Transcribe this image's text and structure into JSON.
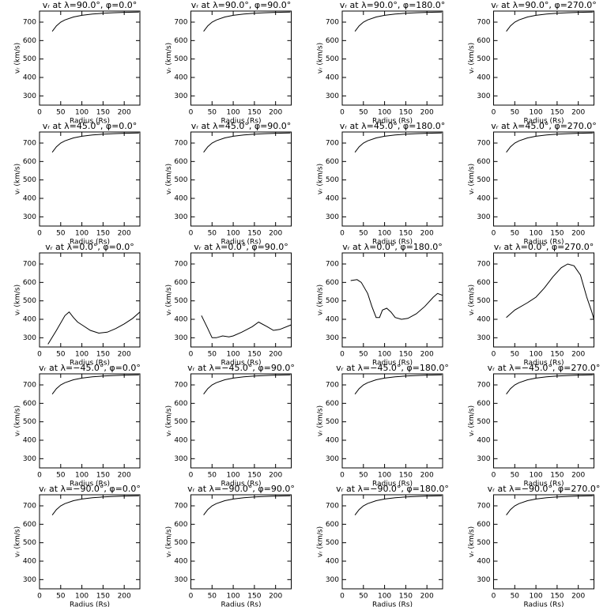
{
  "chart_data": [
    {
      "type": "line",
      "title": "vᵣ at λ=90.0°, φ=0.0°",
      "x": [
        30,
        40,
        50,
        60,
        80,
        100,
        125,
        150,
        175,
        200,
        235
      ],
      "values": [
        650,
        680,
        700,
        712,
        728,
        737,
        744,
        748,
        751,
        753,
        755
      ],
      "xlim": [
        0,
        237
      ],
      "ylim": [
        250,
        760
      ],
      "xticks": [
        0,
        50,
        100,
        150,
        200
      ],
      "yticks": [
        300,
        400,
        500,
        600,
        700
      ],
      "xlabel": "Radius (Rs)",
      "ylabel": "vᵣ (km/s)"
    },
    {
      "type": "line",
      "title": "vᵣ at λ=90.0°, φ=90.0°",
      "x": [
        30,
        40,
        50,
        60,
        80,
        100,
        125,
        150,
        175,
        200,
        235
      ],
      "values": [
        650,
        680,
        700,
        712,
        728,
        737,
        744,
        748,
        751,
        753,
        755
      ],
      "xlim": [
        0,
        237
      ],
      "ylim": [
        250,
        760
      ],
      "xticks": [
        0,
        50,
        100,
        150,
        200
      ],
      "yticks": [
        300,
        400,
        500,
        600,
        700
      ],
      "xlabel": "Radius (Rs)",
      "ylabel": "vᵣ (km/s)"
    },
    {
      "type": "line",
      "title": "vᵣ at λ=90.0°, φ=180.0°",
      "x": [
        30,
        40,
        50,
        60,
        80,
        100,
        125,
        150,
        175,
        200,
        235
      ],
      "values": [
        650,
        680,
        700,
        712,
        728,
        737,
        744,
        748,
        751,
        753,
        755
      ],
      "xlim": [
        0,
        237
      ],
      "ylim": [
        250,
        760
      ],
      "xticks": [
        0,
        50,
        100,
        150,
        200
      ],
      "yticks": [
        300,
        400,
        500,
        600,
        700
      ],
      "xlabel": "Radius (Rs)",
      "ylabel": "vᵣ (km/s)"
    },
    {
      "type": "line",
      "title": "vᵣ at λ=90.0°, φ=270.0°",
      "x": [
        30,
        40,
        50,
        60,
        80,
        100,
        125,
        150,
        175,
        200,
        235
      ],
      "values": [
        650,
        680,
        700,
        712,
        728,
        737,
        744,
        748,
        751,
        753,
        755
      ],
      "xlim": [
        0,
        237
      ],
      "ylim": [
        250,
        760
      ],
      "xticks": [
        0,
        50,
        100,
        150,
        200
      ],
      "yticks": [
        300,
        400,
        500,
        600,
        700
      ],
      "xlabel": "Radius (Rs)",
      "ylabel": "vᵣ (km/s)"
    },
    {
      "type": "line",
      "title": "vᵣ at λ=45.0°, φ=0.0°",
      "x": [
        30,
        40,
        50,
        60,
        80,
        100,
        125,
        150,
        175,
        200,
        235
      ],
      "values": [
        650,
        680,
        700,
        712,
        728,
        737,
        744,
        748,
        751,
        753,
        755
      ],
      "xlim": [
        0,
        237
      ],
      "ylim": [
        250,
        760
      ],
      "xticks": [
        0,
        50,
        100,
        150,
        200
      ],
      "yticks": [
        300,
        400,
        500,
        600,
        700
      ],
      "xlabel": "Radius (Rs)",
      "ylabel": "vᵣ (km/s)"
    },
    {
      "type": "line",
      "title": "vᵣ at λ=45.0°, φ=90.0°",
      "x": [
        30,
        40,
        50,
        60,
        80,
        100,
        125,
        150,
        175,
        200,
        235
      ],
      "values": [
        650,
        680,
        700,
        712,
        728,
        737,
        744,
        748,
        751,
        753,
        755
      ],
      "xlim": [
        0,
        237
      ],
      "ylim": [
        250,
        760
      ],
      "xticks": [
        0,
        50,
        100,
        150,
        200
      ],
      "yticks": [
        300,
        400,
        500,
        600,
        700
      ],
      "xlabel": "Radius (Rs)",
      "ylabel": "vᵣ (km/s)"
    },
    {
      "type": "line",
      "title": "vᵣ at λ=45.0°, φ=180.0°",
      "x": [
        30,
        40,
        50,
        60,
        80,
        100,
        125,
        150,
        175,
        200,
        235
      ],
      "values": [
        650,
        680,
        700,
        712,
        728,
        737,
        744,
        748,
        751,
        753,
        755
      ],
      "xlim": [
        0,
        237
      ],
      "ylim": [
        250,
        760
      ],
      "xticks": [
        0,
        50,
        100,
        150,
        200
      ],
      "yticks": [
        300,
        400,
        500,
        600,
        700
      ],
      "xlabel": "Radius (Rs)",
      "ylabel": "vᵣ (km/s)"
    },
    {
      "type": "line",
      "title": "vᵣ at λ=45.0°, φ=270.0°",
      "x": [
        30,
        40,
        50,
        60,
        80,
        100,
        125,
        150,
        175,
        200,
        235
      ],
      "values": [
        650,
        680,
        700,
        712,
        728,
        737,
        744,
        748,
        751,
        753,
        755
      ],
      "xlim": [
        0,
        237
      ],
      "ylim": [
        250,
        760
      ],
      "xticks": [
        0,
        50,
        100,
        150,
        200
      ],
      "yticks": [
        300,
        400,
        500,
        600,
        700
      ],
      "xlabel": "Radius (Rs)",
      "ylabel": "vᵣ (km/s)"
    },
    {
      "type": "line",
      "title": "vᵣ at λ=0.0°, φ=0.0°",
      "x": [
        20,
        40,
        60,
        70,
        80,
        90,
        100,
        120,
        140,
        160,
        180,
        200,
        220,
        237
      ],
      "values": [
        265,
        340,
        420,
        440,
        410,
        385,
        370,
        340,
        325,
        330,
        350,
        375,
        405,
        440
      ],
      "xlim": [
        0,
        237
      ],
      "ylim": [
        250,
        760
      ],
      "xticks": [
        0,
        50,
        100,
        150,
        200
      ],
      "yticks": [
        300,
        400,
        500,
        600,
        700
      ],
      "xlabel": "Radius (Rs)",
      "ylabel": "vᵣ (km/s)"
    },
    {
      "type": "line",
      "title": "vᵣ at λ=0.0°, φ=90.0°",
      "x": [
        25,
        40,
        50,
        60,
        75,
        90,
        100,
        120,
        145,
        160,
        180,
        195,
        210,
        237
      ],
      "values": [
        420,
        350,
        300,
        300,
        310,
        305,
        310,
        330,
        360,
        385,
        360,
        340,
        345,
        370
      ],
      "xlim": [
        0,
        237
      ],
      "ylim": [
        250,
        760
      ],
      "xticks": [
        0,
        50,
        100,
        150,
        200
      ],
      "yticks": [
        300,
        400,
        500,
        600,
        700
      ],
      "xlabel": "Radius (Rs)",
      "ylabel": "vᵣ (km/s)"
    },
    {
      "type": "line",
      "title": "vᵣ at λ=0.0°, φ=180.0°",
      "x": [
        20,
        35,
        45,
        60,
        70,
        80,
        88,
        95,
        105,
        115,
        125,
        140,
        155,
        175,
        195,
        215,
        225,
        237
      ],
      "values": [
        610,
        615,
        600,
        540,
        470,
        410,
        410,
        450,
        460,
        440,
        410,
        400,
        405,
        430,
        470,
        520,
        540,
        530
      ],
      "xlim": [
        0,
        237
      ],
      "ylim": [
        250,
        760
      ],
      "xticks": [
        0,
        50,
        100,
        150,
        200
      ],
      "yticks": [
        300,
        400,
        500,
        600,
        700
      ],
      "xlabel": "Radius (Rs)",
      "ylabel": "vᵣ (km/s)"
    },
    {
      "type": "line",
      "title": "vᵣ at λ=0.0°, φ=270.0°",
      "x": [
        30,
        50,
        80,
        100,
        120,
        140,
        160,
        175,
        190,
        205,
        220,
        232,
        237
      ],
      "values": [
        410,
        450,
        490,
        520,
        570,
        630,
        680,
        700,
        690,
        640,
        520,
        440,
        400
      ],
      "xlim": [
        0,
        237
      ],
      "ylim": [
        250,
        760
      ],
      "xticks": [
        0,
        50,
        100,
        150,
        200
      ],
      "yticks": [
        300,
        400,
        500,
        600,
        700
      ],
      "xlabel": "Radius (Rs)",
      "ylabel": "vᵣ (km/s)"
    },
    {
      "type": "line",
      "title": "vᵣ at λ=−45.0°, φ=0.0°",
      "x": [
        30,
        40,
        50,
        60,
        80,
        100,
        125,
        150,
        175,
        200,
        235
      ],
      "values": [
        650,
        680,
        700,
        712,
        728,
        737,
        744,
        748,
        751,
        753,
        755
      ],
      "xlim": [
        0,
        237
      ],
      "ylim": [
        250,
        760
      ],
      "xticks": [
        0,
        50,
        100,
        150,
        200
      ],
      "yticks": [
        300,
        400,
        500,
        600,
        700
      ],
      "xlabel": "Radius (Rs)",
      "ylabel": "vᵣ (km/s)"
    },
    {
      "type": "line",
      "title": "vᵣ at λ=−45.0°, φ=90.0°",
      "x": [
        30,
        40,
        50,
        60,
        80,
        100,
        125,
        150,
        175,
        200,
        235
      ],
      "values": [
        650,
        680,
        700,
        712,
        728,
        737,
        744,
        748,
        751,
        753,
        755
      ],
      "xlim": [
        0,
        237
      ],
      "ylim": [
        250,
        760
      ],
      "xticks": [
        0,
        50,
        100,
        150,
        200
      ],
      "yticks": [
        300,
        400,
        500,
        600,
        700
      ],
      "xlabel": "Radius (Rs)",
      "ylabel": "vᵣ (km/s)"
    },
    {
      "type": "line",
      "title": "vᵣ at λ=−45.0°, φ=180.0°",
      "x": [
        30,
        40,
        50,
        60,
        80,
        100,
        125,
        150,
        175,
        200,
        235
      ],
      "values": [
        650,
        680,
        700,
        712,
        728,
        737,
        744,
        748,
        751,
        753,
        755
      ],
      "xlim": [
        0,
        237
      ],
      "ylim": [
        250,
        760
      ],
      "xticks": [
        0,
        50,
        100,
        150,
        200
      ],
      "yticks": [
        300,
        400,
        500,
        600,
        700
      ],
      "xlabel": "Radius (Rs)",
      "ylabel": "vᵣ (km/s)"
    },
    {
      "type": "line",
      "title": "vᵣ at λ=−45.0°, φ=270.0°",
      "x": [
        30,
        40,
        50,
        60,
        80,
        100,
        125,
        150,
        175,
        200,
        235
      ],
      "values": [
        650,
        680,
        700,
        712,
        728,
        737,
        744,
        748,
        751,
        753,
        755
      ],
      "xlim": [
        0,
        237
      ],
      "ylim": [
        250,
        760
      ],
      "xticks": [
        0,
        50,
        100,
        150,
        200
      ],
      "yticks": [
        300,
        400,
        500,
        600,
        700
      ],
      "xlabel": "Radius (Rs)",
      "ylabel": "vᵣ (km/s)"
    },
    {
      "type": "line",
      "title": "vᵣ at λ=−90.0°, φ=0.0°",
      "x": [
        30,
        40,
        50,
        60,
        80,
        100,
        125,
        150,
        175,
        200,
        235
      ],
      "values": [
        650,
        680,
        700,
        712,
        728,
        737,
        744,
        748,
        751,
        753,
        755
      ],
      "xlim": [
        0,
        237
      ],
      "ylim": [
        250,
        760
      ],
      "xticks": [
        0,
        50,
        100,
        150,
        200
      ],
      "yticks": [
        300,
        400,
        500,
        600,
        700
      ],
      "xlabel": "Radius (Rs)",
      "ylabel": "vᵣ (km/s)"
    },
    {
      "type": "line",
      "title": "vᵣ at λ=−90.0°, φ=90.0°",
      "x": [
        30,
        40,
        50,
        60,
        80,
        100,
        125,
        150,
        175,
        200,
        235
      ],
      "values": [
        650,
        680,
        700,
        712,
        728,
        737,
        744,
        748,
        751,
        753,
        755
      ],
      "xlim": [
        0,
        237
      ],
      "ylim": [
        250,
        760
      ],
      "xticks": [
        0,
        50,
        100,
        150,
        200
      ],
      "yticks": [
        300,
        400,
        500,
        600,
        700
      ],
      "xlabel": "Radius (Rs)",
      "ylabel": "vᵣ (km/s)"
    },
    {
      "type": "line",
      "title": "vᵣ at λ=−90.0°, φ=180.0°",
      "x": [
        30,
        40,
        50,
        60,
        80,
        100,
        125,
        150,
        175,
        200,
        235
      ],
      "values": [
        650,
        680,
        700,
        712,
        728,
        737,
        744,
        748,
        751,
        753,
        755
      ],
      "xlim": [
        0,
        237
      ],
      "ylim": [
        250,
        760
      ],
      "xticks": [
        0,
        50,
        100,
        150,
        200
      ],
      "yticks": [
        300,
        400,
        500,
        600,
        700
      ],
      "xlabel": "Radius (Rs)",
      "ylabel": "vᵣ (km/s)"
    },
    {
      "type": "line",
      "title": "vᵣ at λ=−90.0°, φ=270.0°",
      "x": [
        30,
        40,
        50,
        60,
        80,
        100,
        125,
        150,
        175,
        200,
        235
      ],
      "values": [
        650,
        680,
        700,
        712,
        728,
        737,
        744,
        748,
        751,
        753,
        755
      ],
      "xlim": [
        0,
        237
      ],
      "ylim": [
        250,
        760
      ],
      "xticks": [
        0,
        50,
        100,
        150,
        200
      ],
      "yticks": [
        300,
        400,
        500,
        600,
        700
      ],
      "xlabel": "Radius (Rs)",
      "ylabel": "vᵣ (km/s)"
    }
  ]
}
